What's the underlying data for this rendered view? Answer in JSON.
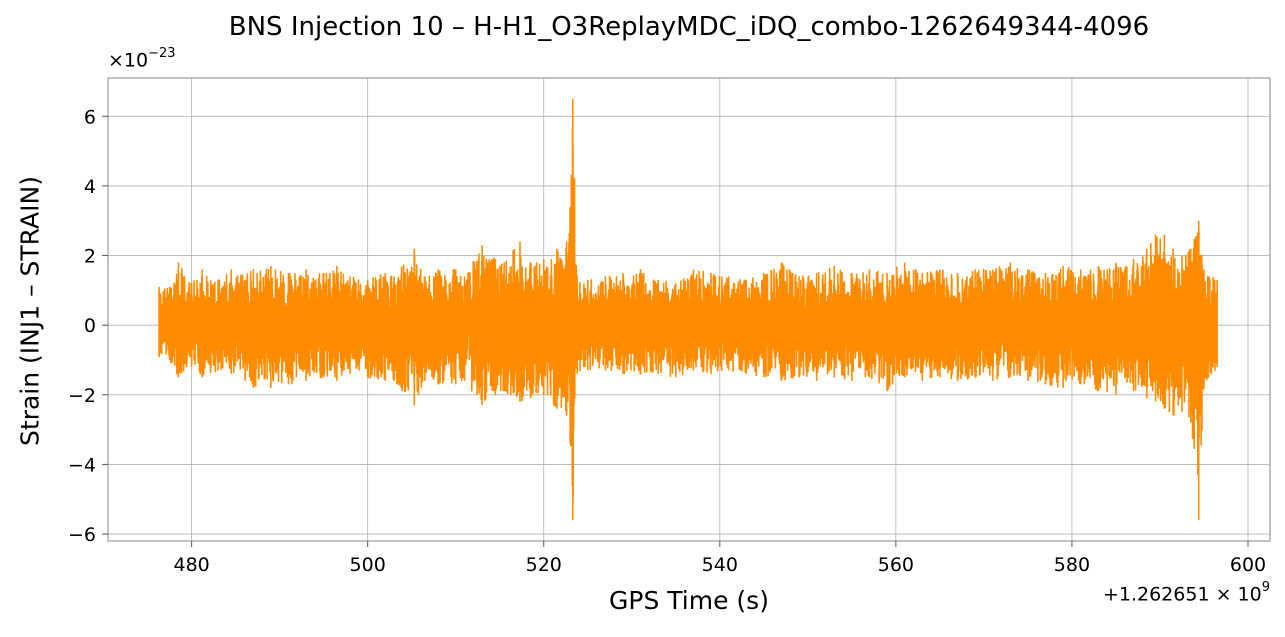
{
  "chart_data": {
    "type": "line",
    "title": "BNS Injection 10 – H-H1_O3ReplayMDC_iDQ_combo-1262649344-4096",
    "xlabel": "GPS Time (s)",
    "ylabel": "Strain (INJ1 – STRAIN)",
    "x_offset_label": "+1.262651 × 10",
    "x_offset_exponent": "9",
    "y_scale_label": "×10",
    "y_scale_exponent": "−23",
    "xlim": [
      470.5,
      602.5
    ],
    "ylim": [
      -6.2,
      7.1
    ],
    "xticks": [
      480,
      500,
      520,
      540,
      560,
      580,
      600
    ],
    "yticks": [
      -6,
      -4,
      -2,
      0,
      2,
      4,
      6
    ],
    "grid": true,
    "line_color": "#ff8c00",
    "series": [
      {
        "x_range": [
          476.3,
          596.5
        ],
        "envelope_upper": [
          [
            476.3,
            1.1
          ],
          [
            477.5,
            1.1
          ],
          [
            478.5,
            1.8
          ],
          [
            480,
            1.2
          ],
          [
            481.2,
            1.6
          ],
          [
            483,
            1.3
          ],
          [
            484.5,
            1.6
          ],
          [
            487,
            1.6
          ],
          [
            489,
            1.7
          ],
          [
            491,
            1.5
          ],
          [
            493,
            1.6
          ],
          [
            495,
            1.5
          ],
          [
            496.5,
            1.7
          ],
          [
            498,
            1.4
          ],
          [
            500,
            1.3
          ],
          [
            502,
            1.5
          ],
          [
            503,
            1.4
          ],
          [
            505.3,
            2.2
          ],
          [
            506.5,
            1.4
          ],
          [
            508,
            1.6
          ],
          [
            510,
            1.6
          ],
          [
            511,
            1.4
          ],
          [
            513,
            2.3
          ],
          [
            514.5,
            1.9
          ],
          [
            515.5,
            1.8
          ],
          [
            517.3,
            2.4
          ],
          [
            518.5,
            1.8
          ],
          [
            520,
            1.9
          ],
          [
            521.5,
            2.2
          ],
          [
            522.6,
            2.4
          ],
          [
            523.0,
            3.4
          ],
          [
            523.3,
            6.5
          ],
          [
            523.8,
            1.2
          ],
          [
            525,
            1.3
          ],
          [
            527,
            1.4
          ],
          [
            529,
            1.5
          ],
          [
            531,
            1.6
          ],
          [
            533,
            1.3
          ],
          [
            535,
            1.2
          ],
          [
            537,
            1.6
          ],
          [
            539,
            1.5
          ],
          [
            541,
            1.4
          ],
          [
            543,
            1.3
          ],
          [
            545,
            1.5
          ],
          [
            547,
            1.8
          ],
          [
            549,
            1.4
          ],
          [
            551,
            1.5
          ],
          [
            553,
            1.7
          ],
          [
            555,
            1.5
          ],
          [
            557,
            1.6
          ],
          [
            559,
            1.5
          ],
          [
            561,
            1.8
          ],
          [
            563,
            1.5
          ],
          [
            565,
            1.6
          ],
          [
            567,
            1.5
          ],
          [
            569,
            1.6
          ],
          [
            571,
            1.6
          ],
          [
            573,
            1.8
          ],
          [
            575,
            1.6
          ],
          [
            577,
            1.5
          ],
          [
            579,
            1.7
          ],
          [
            581,
            1.6
          ],
          [
            583,
            1.7
          ],
          [
            585,
            1.8
          ],
          [
            587,
            1.9
          ],
          [
            588.5,
            2.2
          ],
          [
            589.5,
            2.6
          ],
          [
            590.5,
            2.6
          ],
          [
            591.5,
            2.2
          ],
          [
            592.5,
            2.0
          ],
          [
            593.5,
            2.2
          ],
          [
            594.4,
            3.0
          ],
          [
            595.0,
            1.6
          ],
          [
            596.5,
            1.3
          ]
        ],
        "envelope_lower": [
          [
            476.3,
            -0.9
          ],
          [
            477.5,
            -1.0
          ],
          [
            478.5,
            -1.5
          ],
          [
            480,
            -1.2
          ],
          [
            481.2,
            -1.5
          ],
          [
            483,
            -1.3
          ],
          [
            484.5,
            -1.4
          ],
          [
            487,
            -1.8
          ],
          [
            489,
            -1.8
          ],
          [
            491,
            -1.7
          ],
          [
            493,
            -1.6
          ],
          [
            495,
            -1.5
          ],
          [
            496.5,
            -1.6
          ],
          [
            498,
            -1.4
          ],
          [
            500,
            -1.5
          ],
          [
            502,
            -1.6
          ],
          [
            503,
            -1.6
          ],
          [
            505.3,
            -2.3
          ],
          [
            506.5,
            -1.6
          ],
          [
            508,
            -1.7
          ],
          [
            510,
            -1.7
          ],
          [
            511,
            -1.6
          ],
          [
            513,
            -2.3
          ],
          [
            514.5,
            -2.0
          ],
          [
            515.5,
            -1.9
          ],
          [
            517.3,
            -2.2
          ],
          [
            518.5,
            -2.1
          ],
          [
            520,
            -2.0
          ],
          [
            521.5,
            -2.4
          ],
          [
            522.6,
            -2.6
          ],
          [
            523.0,
            -3.4
          ],
          [
            523.3,
            -5.6
          ],
          [
            523.8,
            -1.4
          ],
          [
            525,
            -1.3
          ],
          [
            527,
            -1.3
          ],
          [
            529,
            -1.4
          ],
          [
            531,
            -1.4
          ],
          [
            533,
            -1.4
          ],
          [
            535,
            -1.5
          ],
          [
            537,
            -1.3
          ],
          [
            539,
            -1.4
          ],
          [
            541,
            -1.3
          ],
          [
            543,
            -1.4
          ],
          [
            545,
            -1.5
          ],
          [
            547,
            -1.6
          ],
          [
            549,
            -1.5
          ],
          [
            551,
            -1.6
          ],
          [
            553,
            -1.5
          ],
          [
            555,
            -1.6
          ],
          [
            557,
            -1.5
          ],
          [
            559,
            -1.9
          ],
          [
            561,
            -1.5
          ],
          [
            563,
            -1.6
          ],
          [
            565,
            -1.5
          ],
          [
            567,
            -1.6
          ],
          [
            569,
            -1.5
          ],
          [
            571,
            -1.6
          ],
          [
            573,
            -1.5
          ],
          [
            575,
            -1.6
          ],
          [
            577,
            -1.7
          ],
          [
            579,
            -1.8
          ],
          [
            581,
            -1.7
          ],
          [
            583,
            -1.9
          ],
          [
            585,
            -2.0
          ],
          [
            587,
            -1.9
          ],
          [
            588.5,
            -2.1
          ],
          [
            589.5,
            -2.2
          ],
          [
            590.5,
            -2.4
          ],
          [
            591.5,
            -2.6
          ],
          [
            592.5,
            -2.5
          ],
          [
            593.5,
            -2.8
          ],
          [
            594.4,
            -5.6
          ],
          [
            595.0,
            -1.8
          ],
          [
            596.5,
            -1.2
          ]
        ]
      }
    ]
  }
}
